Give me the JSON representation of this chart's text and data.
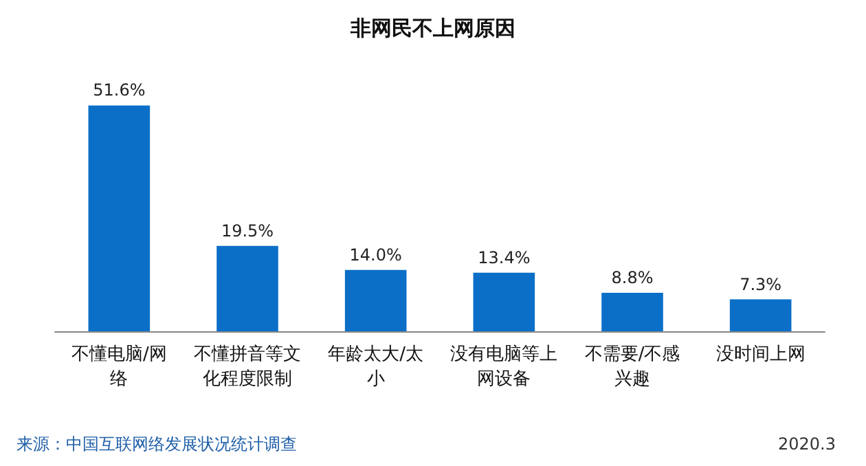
{
  "chart_data": {
    "type": "bar",
    "title": "非网民不上网原因",
    "categories": [
      "不懂电脑/网络",
      "不懂拼音等文化程度限制",
      "年龄太大/太小",
      "没有电脑等上网设备",
      "不需要/不感兴趣",
      "没时间上网"
    ],
    "values": [
      51.6,
      19.5,
      14.0,
      13.4,
      8.8,
      7.3
    ],
    "value_labels": [
      "51.6%",
      "19.5%",
      "14.0%",
      "13.4%",
      "8.8%",
      "7.3%"
    ],
    "color": "#0b6fc8",
    "annotations": [
      "来源：中国互联网络发展状况统计调查",
      "2020.3"
    ]
  }
}
